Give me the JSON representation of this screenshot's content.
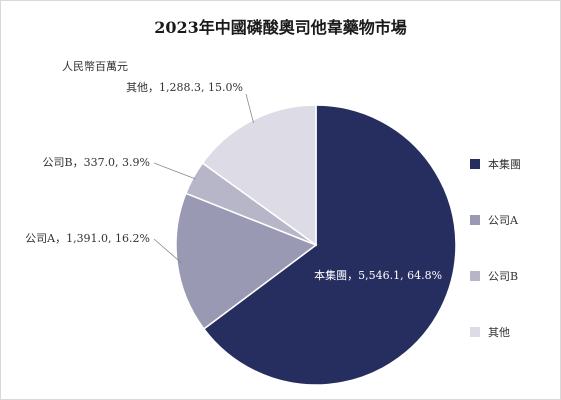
{
  "chart_data": {
    "type": "pie",
    "title": "2023年中國磷酸奧司他韋藥物市場",
    "unit_label": "人民幣百萬元",
    "slices": [
      {
        "label": "本集團",
        "value": 5546.1,
        "percent": 64.8,
        "color": "#262e60",
        "data_label": "本集團，5,546.1, 64.8%"
      },
      {
        "label": "公司A",
        "value": 1391.0,
        "percent": 16.2,
        "color": "#9a99b3",
        "data_label": "公司A，1,391.0, 16.2%"
      },
      {
        "label": "公司B",
        "value": 337.0,
        "percent": 3.9,
        "color": "#b7b6c9",
        "data_label": "公司B，337.0, 3.9%"
      },
      {
        "label": "其他",
        "value": 1288.3,
        "percent": 15.0,
        "color": "#dcdbe6",
        "data_label": "其他，1,288.3, 15.0%"
      }
    ],
    "legend": [
      {
        "label": "本集團",
        "color": "#262e60"
      },
      {
        "label": "公司A",
        "color": "#9a99b3"
      },
      {
        "label": "公司B",
        "color": "#b7b6c9"
      },
      {
        "label": "其他",
        "color": "#dcdbe6"
      }
    ],
    "legend_position": "right"
  }
}
